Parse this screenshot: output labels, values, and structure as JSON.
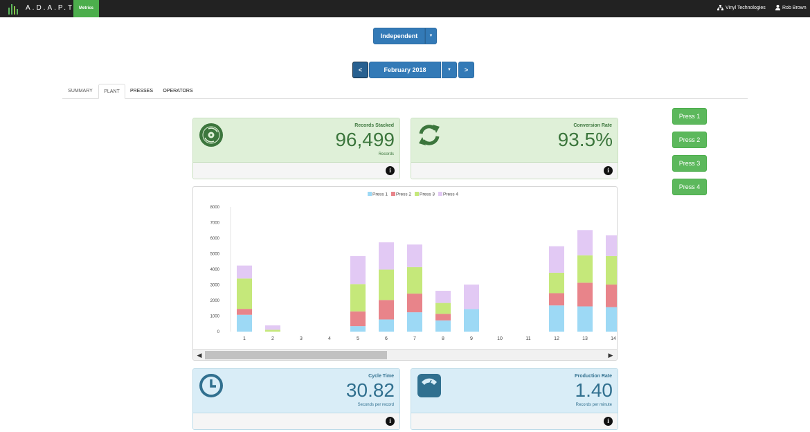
{
  "navbar": {
    "brand": "A.D.A.P.T.",
    "metrics_label": "Metrics",
    "org_name": "Vinyl Technologies",
    "user_name": "Rob Brown"
  },
  "group_select": {
    "label": "Independent"
  },
  "month_nav": {
    "prev_label": "<",
    "month_label": "February 2018",
    "next_label": ">"
  },
  "tabs": [
    {
      "label": "SUMMARY"
    },
    {
      "label": "PLANT"
    },
    {
      "label": "PRESSES"
    },
    {
      "label": "OPERATORS"
    }
  ],
  "stats": {
    "records_stacked": {
      "title": "Records Stacked",
      "value": "96,499",
      "sub": "Records",
      "icon": "record-icon"
    },
    "conversion_rate": {
      "title": "Conversion Rate",
      "value": "93.5%",
      "icon": "refresh-icon"
    },
    "cycle_time": {
      "title": "Cycle Time",
      "value": "30.82",
      "sub": "Seconds per record",
      "icon": "clock-icon"
    },
    "production_rate": {
      "title": "Production Rate",
      "value": "1.40",
      "sub": "Records per minute",
      "icon": "scale-icon"
    }
  },
  "press_buttons": [
    {
      "label": "Press 1"
    },
    {
      "label": "Press 2"
    },
    {
      "label": "Press 3"
    },
    {
      "label": "Press 4"
    }
  ],
  "colors": {
    "press1": "#9dd9f5",
    "press2": "#e8848a",
    "press3": "#c5e87a",
    "press4": "#e2c9f4",
    "navbar": "#222222",
    "primary": "#337ab7",
    "success": "#5cb85c"
  },
  "chart_data": {
    "type": "bar",
    "stacked": true,
    "categories": [
      "1",
      "2",
      "3",
      "4",
      "5",
      "6",
      "7",
      "8",
      "9",
      "10",
      "11",
      "12",
      "13",
      "14"
    ],
    "ylim": [
      0,
      8000
    ],
    "yticks": [
      "0",
      "1000",
      "2000",
      "3000",
      "4000",
      "5000",
      "6000",
      "7000",
      "8000"
    ],
    "legend_position": "top",
    "series": [
      {
        "name": "Press 1",
        "color": "#9dd9f5",
        "values": [
          1080,
          0,
          0,
          0,
          350,
          780,
          1240,
          720,
          1450,
          0,
          0,
          1680,
          1620,
          1570
        ]
      },
      {
        "name": "Press 2",
        "color": "#e8848a",
        "values": [
          380,
          0,
          0,
          0,
          950,
          1250,
          1200,
          420,
          0,
          0,
          0,
          790,
          1520,
          1450
        ]
      },
      {
        "name": "Press 3",
        "color": "#c5e87a",
        "values": [
          1950,
          120,
          0,
          0,
          1750,
          1950,
          1700,
          700,
          0,
          0,
          0,
          1310,
          1760,
          1830
        ]
      },
      {
        "name": "Press 4",
        "color": "#e2c9f4",
        "values": [
          830,
          280,
          0,
          0,
          1800,
          1750,
          1450,
          780,
          1570,
          0,
          0,
          1700,
          1620,
          1330
        ]
      }
    ]
  }
}
